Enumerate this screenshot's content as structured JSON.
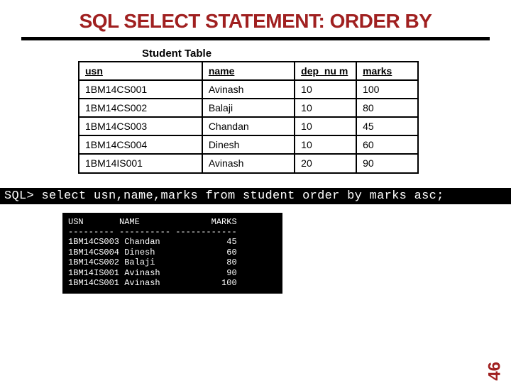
{
  "title": "SQL SELECT STATEMENT: ORDER BY",
  "title_color": "#a02020",
  "caption": "Student Table",
  "columns": [
    "usn",
    "name",
    "dep_num",
    "marks"
  ],
  "col_header_display": [
    "usn",
    "name",
    "dep_nu m",
    "marks"
  ],
  "rows": [
    [
      "1BM14CS001",
      "Avinash",
      "10",
      "100"
    ],
    [
      "1BM14CS002",
      "Balaji",
      "10",
      "80"
    ],
    [
      "1BM14CS003",
      "Chandan",
      "10",
      "45"
    ],
    [
      "1BM14CS004",
      "Dinesh",
      "10",
      "60"
    ],
    [
      "1BM14IS001",
      "Avinash",
      "20",
      "90"
    ]
  ],
  "sql_prompt": "SQL> select usn,name,marks from student order by marks asc;",
  "sql_output_header1": "USN       NAME              MARKS",
  "sql_output_header2": "--------- ---------- ------------",
  "sql_output_rows": [
    "1BM14CS003 Chandan             45",
    "1BM14CS004 Dinesh              60",
    "1BM14CS002 Balaji              80",
    "1BM14IS001 Avinash             90",
    "1BM14CS001 Avinash            100"
  ],
  "page_number": "46",
  "colors": {
    "accent": "#a02020",
    "terminal_bg": "#000000",
    "terminal_fg": "#ffffff",
    "border": "#000000"
  }
}
